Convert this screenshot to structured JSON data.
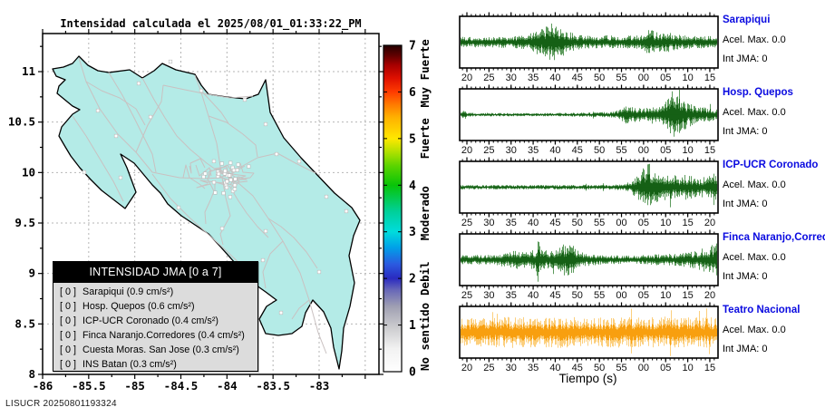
{
  "title": "Intensidad calculada el 2025/08/01_01:33:22_PM",
  "watermark": "LISUCR 20250801193324",
  "colors": {
    "station_label": "#0a0ae0",
    "waveform_green": "#156015",
    "waveform_green_light": "#5d9b5d",
    "waveform_orange": "#f89f0f",
    "waveform_orange_light": "#fccf7d",
    "land": "#b4ebe7",
    "roads": "#c9c1c1",
    "grid": "#b5b5b5",
    "legend_bg": "#dcdcdc",
    "legend_header_bg": "#000000",
    "legend_header_fg": "#ffffff"
  },
  "map": {
    "x_ticks": [
      -86,
      -85.5,
      -85,
      -84.5,
      -84,
      -83.5,
      -83
    ],
    "y_ticks": [
      8,
      8.5,
      9,
      9.5,
      10,
      10.5,
      11
    ],
    "legend": {
      "title": "INTENSIDAD JMA [0 a 7]",
      "entries": [
        {
          "value": "[ 0 ]",
          "label": "Sarapiqui (0.9 cm/s²)"
        },
        {
          "value": "[ 0 ]",
          "label": "Hosp. Quepos (0.6 cm/s²)"
        },
        {
          "value": "[ 0 ]",
          "label": "ICP-UCR Coronado (0.4 cm/s²)"
        },
        {
          "value": "[ 0 ]",
          "label": "Finca Naranjo.Corredores (0.4 cm/s²)"
        },
        {
          "value": "[ 0 ]",
          "label": "Cuesta Moras. San Jose (0.3 cm/s²)"
        },
        {
          "value": "[ 0 ]",
          "label": "INS Batan (0.3 cm/s²)"
        }
      ]
    }
  },
  "colorbar": {
    "range": [
      0,
      7
    ],
    "ticks": [
      0,
      1,
      2,
      3,
      4,
      5,
      6,
      7
    ],
    "categories": [
      {
        "label": "No sentido",
        "value": 0.75
      },
      {
        "label": "Debil",
        "value": 2
      },
      {
        "label": "Moderado",
        "value": 3.4
      },
      {
        "label": "Fuerte",
        "value": 5
      },
      {
        "label": "Muy Fuerte",
        "value": 6.4
      }
    ]
  },
  "seismograms": {
    "xlabel": "Tiempo (s)",
    "panels": [
      {
        "station": "Sarapiqui",
        "acel": "Acel. Max. 0.0",
        "int": "Int JMA: 0",
        "color": "green",
        "ticks": [
          "20",
          "25",
          "30",
          "35",
          "40",
          "45",
          "50",
          "55",
          "00",
          "05",
          "10",
          "15"
        ],
        "scale": 0.82,
        "spike": 0.012,
        "envelope": [
          [
            0,
            0.25
          ],
          [
            0.2,
            0.27
          ],
          [
            0.26,
            0.35
          ],
          [
            0.3,
            0.6
          ],
          [
            0.34,
            0.75
          ],
          [
            0.365,
            1.0
          ],
          [
            0.4,
            0.65
          ],
          [
            0.44,
            0.45
          ],
          [
            0.5,
            0.3
          ],
          [
            0.56,
            0.33
          ],
          [
            0.62,
            0.3
          ],
          [
            0.7,
            0.33
          ],
          [
            0.735,
            0.62
          ],
          [
            0.77,
            0.45
          ],
          [
            0.8,
            0.5
          ],
          [
            0.84,
            0.35
          ],
          [
            0.9,
            0.3
          ],
          [
            1,
            0.28
          ]
        ]
      },
      {
        "station": "Hosp. Quepos",
        "acel": "Acel. Max. 0.0",
        "int": "Int JMA: 0",
        "color": "green",
        "ticks": [
          "20",
          "25",
          "30",
          "35",
          "40",
          "45",
          "50",
          "55",
          "00",
          "05",
          "10",
          "15"
        ],
        "scale": 0.95,
        "spike": 0.01,
        "envelope": [
          [
            0,
            0.05
          ],
          [
            0.015,
            0.3
          ],
          [
            0.03,
            0.08
          ],
          [
            0.3,
            0.06
          ],
          [
            0.5,
            0.09
          ],
          [
            0.6,
            0.12
          ],
          [
            0.645,
            0.38
          ],
          [
            0.68,
            0.3
          ],
          [
            0.72,
            0.25
          ],
          [
            0.75,
            0.45
          ],
          [
            0.775,
            0.35
          ],
          [
            0.8,
            0.55
          ],
          [
            0.825,
            1.0
          ],
          [
            0.85,
            0.75
          ],
          [
            0.88,
            0.55
          ],
          [
            0.92,
            0.35
          ],
          [
            1,
            0.22
          ]
        ]
      },
      {
        "station": "ICP-UCR Coronado",
        "acel": "Acel. Max. 0.0",
        "int": "Int JMA: 0",
        "color": "green",
        "ticks": [
          "25",
          "30",
          "35",
          "40",
          "45",
          "50",
          "55",
          "00",
          "05",
          "10",
          "15",
          "20"
        ],
        "scale": 1.0,
        "spike": 0.01,
        "envelope": [
          [
            0,
            0.09
          ],
          [
            0.55,
            0.09
          ],
          [
            0.62,
            0.12
          ],
          [
            0.66,
            0.2
          ],
          [
            0.7,
            0.55
          ],
          [
            0.725,
            1.0
          ],
          [
            0.75,
            0.8
          ],
          [
            0.78,
            0.45
          ],
          [
            0.81,
            0.55
          ],
          [
            0.85,
            0.4
          ],
          [
            0.88,
            0.5
          ],
          [
            0.92,
            0.35
          ],
          [
            0.96,
            0.45
          ],
          [
            1,
            0.5
          ]
        ]
      },
      {
        "station": "Finca Naranjo,Corredor",
        "acel": "Acel. Max. 0.0",
        "int": "Int JMA: 0",
        "color": "green",
        "ticks": [
          "25",
          "30",
          "35",
          "40",
          "45",
          "50",
          "55",
          "00",
          "05",
          "10",
          "15",
          "20"
        ],
        "scale": 0.8,
        "spike": 0.02,
        "envelope": [
          [
            0,
            0.22
          ],
          [
            0.12,
            0.24
          ],
          [
            0.18,
            0.35
          ],
          [
            0.22,
            0.45
          ],
          [
            0.26,
            0.4
          ],
          [
            0.295,
            0.5
          ],
          [
            0.305,
            1.2
          ],
          [
            0.315,
            0.5
          ],
          [
            0.35,
            0.45
          ],
          [
            0.38,
            0.5
          ],
          [
            0.425,
            1.0
          ],
          [
            0.45,
            0.5
          ],
          [
            0.48,
            0.35
          ],
          [
            0.55,
            0.22
          ],
          [
            0.65,
            0.2
          ],
          [
            0.75,
            0.25
          ],
          [
            0.85,
            0.3
          ],
          [
            0.92,
            0.45
          ],
          [
            0.97,
            0.7
          ],
          [
            1,
            0.85
          ]
        ]
      },
      {
        "station": "Teatro Nacional",
        "acel": "Acel. Max. 0.0",
        "int": "Int JMA: 0",
        "color": "orange",
        "ticks": [
          "20",
          "25",
          "30",
          "35",
          "40",
          "45",
          "50",
          "55",
          "00",
          "05",
          "10",
          "15"
        ],
        "scale": 0.95,
        "spike": 0.06,
        "envelope": [
          [
            0,
            0.62
          ],
          [
            0.1,
            0.58
          ],
          [
            0.2,
            0.65
          ],
          [
            0.3,
            0.6
          ],
          [
            0.4,
            0.64
          ],
          [
            0.5,
            0.6
          ],
          [
            0.6,
            0.63
          ],
          [
            0.7,
            0.6
          ],
          [
            0.8,
            0.64
          ],
          [
            0.9,
            0.6
          ],
          [
            1,
            0.62
          ]
        ]
      }
    ]
  },
  "chart_data": {
    "type": "multi",
    "figures": [
      {
        "type": "map",
        "title": "Intensidad calculada el 2025/08/01_01:33:22_PM",
        "region": "Costa Rica",
        "xlim": [
          -86,
          -82.35
        ],
        "ylim": [
          8,
          11.38
        ],
        "x_ticks": [
          -86,
          -85.5,
          -85,
          -84.5,
          -84,
          -83.5,
          -83
        ],
        "y_ticks": [
          8,
          8.5,
          9,
          9.5,
          10,
          10.5,
          11
        ],
        "grid": true,
        "colorbar": {
          "label": "Intensidad JMA",
          "range": [
            0,
            7
          ],
          "categories": [
            "No sentido",
            "Debil",
            "Moderado",
            "Fuerte",
            "Muy Fuerte"
          ]
        },
        "stations": [
          {
            "name": "Sarapiqui",
            "int_jma": 0,
            "pga_cm_s2": 0.9
          },
          {
            "name": "Hosp. Quepos",
            "int_jma": 0,
            "pga_cm_s2": 0.6
          },
          {
            "name": "ICP-UCR Coronado",
            "int_jma": 0,
            "pga_cm_s2": 0.4
          },
          {
            "name": "Finca Naranjo.Corredores",
            "int_jma": 0,
            "pga_cm_s2": 0.4
          },
          {
            "name": "Cuesta Moras. San Jose",
            "int_jma": 0,
            "pga_cm_s2": 0.3
          },
          {
            "name": "INS Batan",
            "int_jma": 0,
            "pga_cm_s2": 0.3
          }
        ]
      },
      {
        "type": "line",
        "subtype": "seismogram",
        "xlabel": "Tiempo (s)",
        "x_tick_interval_s": 5,
        "series": [
          {
            "name": "Sarapiqui",
            "acel_max": 0.0,
            "int_jma": 0,
            "burst_windows_s": [
              "33-42",
              "00-07"
            ]
          },
          {
            "name": "Hosp. Quepos",
            "acel_max": 0.0,
            "int_jma": 0,
            "burst_windows_s": [
              "58-12"
            ]
          },
          {
            "name": "ICP-UCR Coronado",
            "acel_max": 0.0,
            "int_jma": 0,
            "burst_windows_s": [
              "04-20"
            ]
          },
          {
            "name": "Finca Naranjo,Corredor",
            "acel_max": 0.0,
            "int_jma": 0,
            "burst_windows_s": [
              "35-50",
              "15-22"
            ]
          },
          {
            "name": "Teatro Nacional",
            "acel_max": 0.0,
            "int_jma": 0,
            "burst_windows_s": [
              "continuous noise"
            ]
          }
        ]
      }
    ]
  }
}
